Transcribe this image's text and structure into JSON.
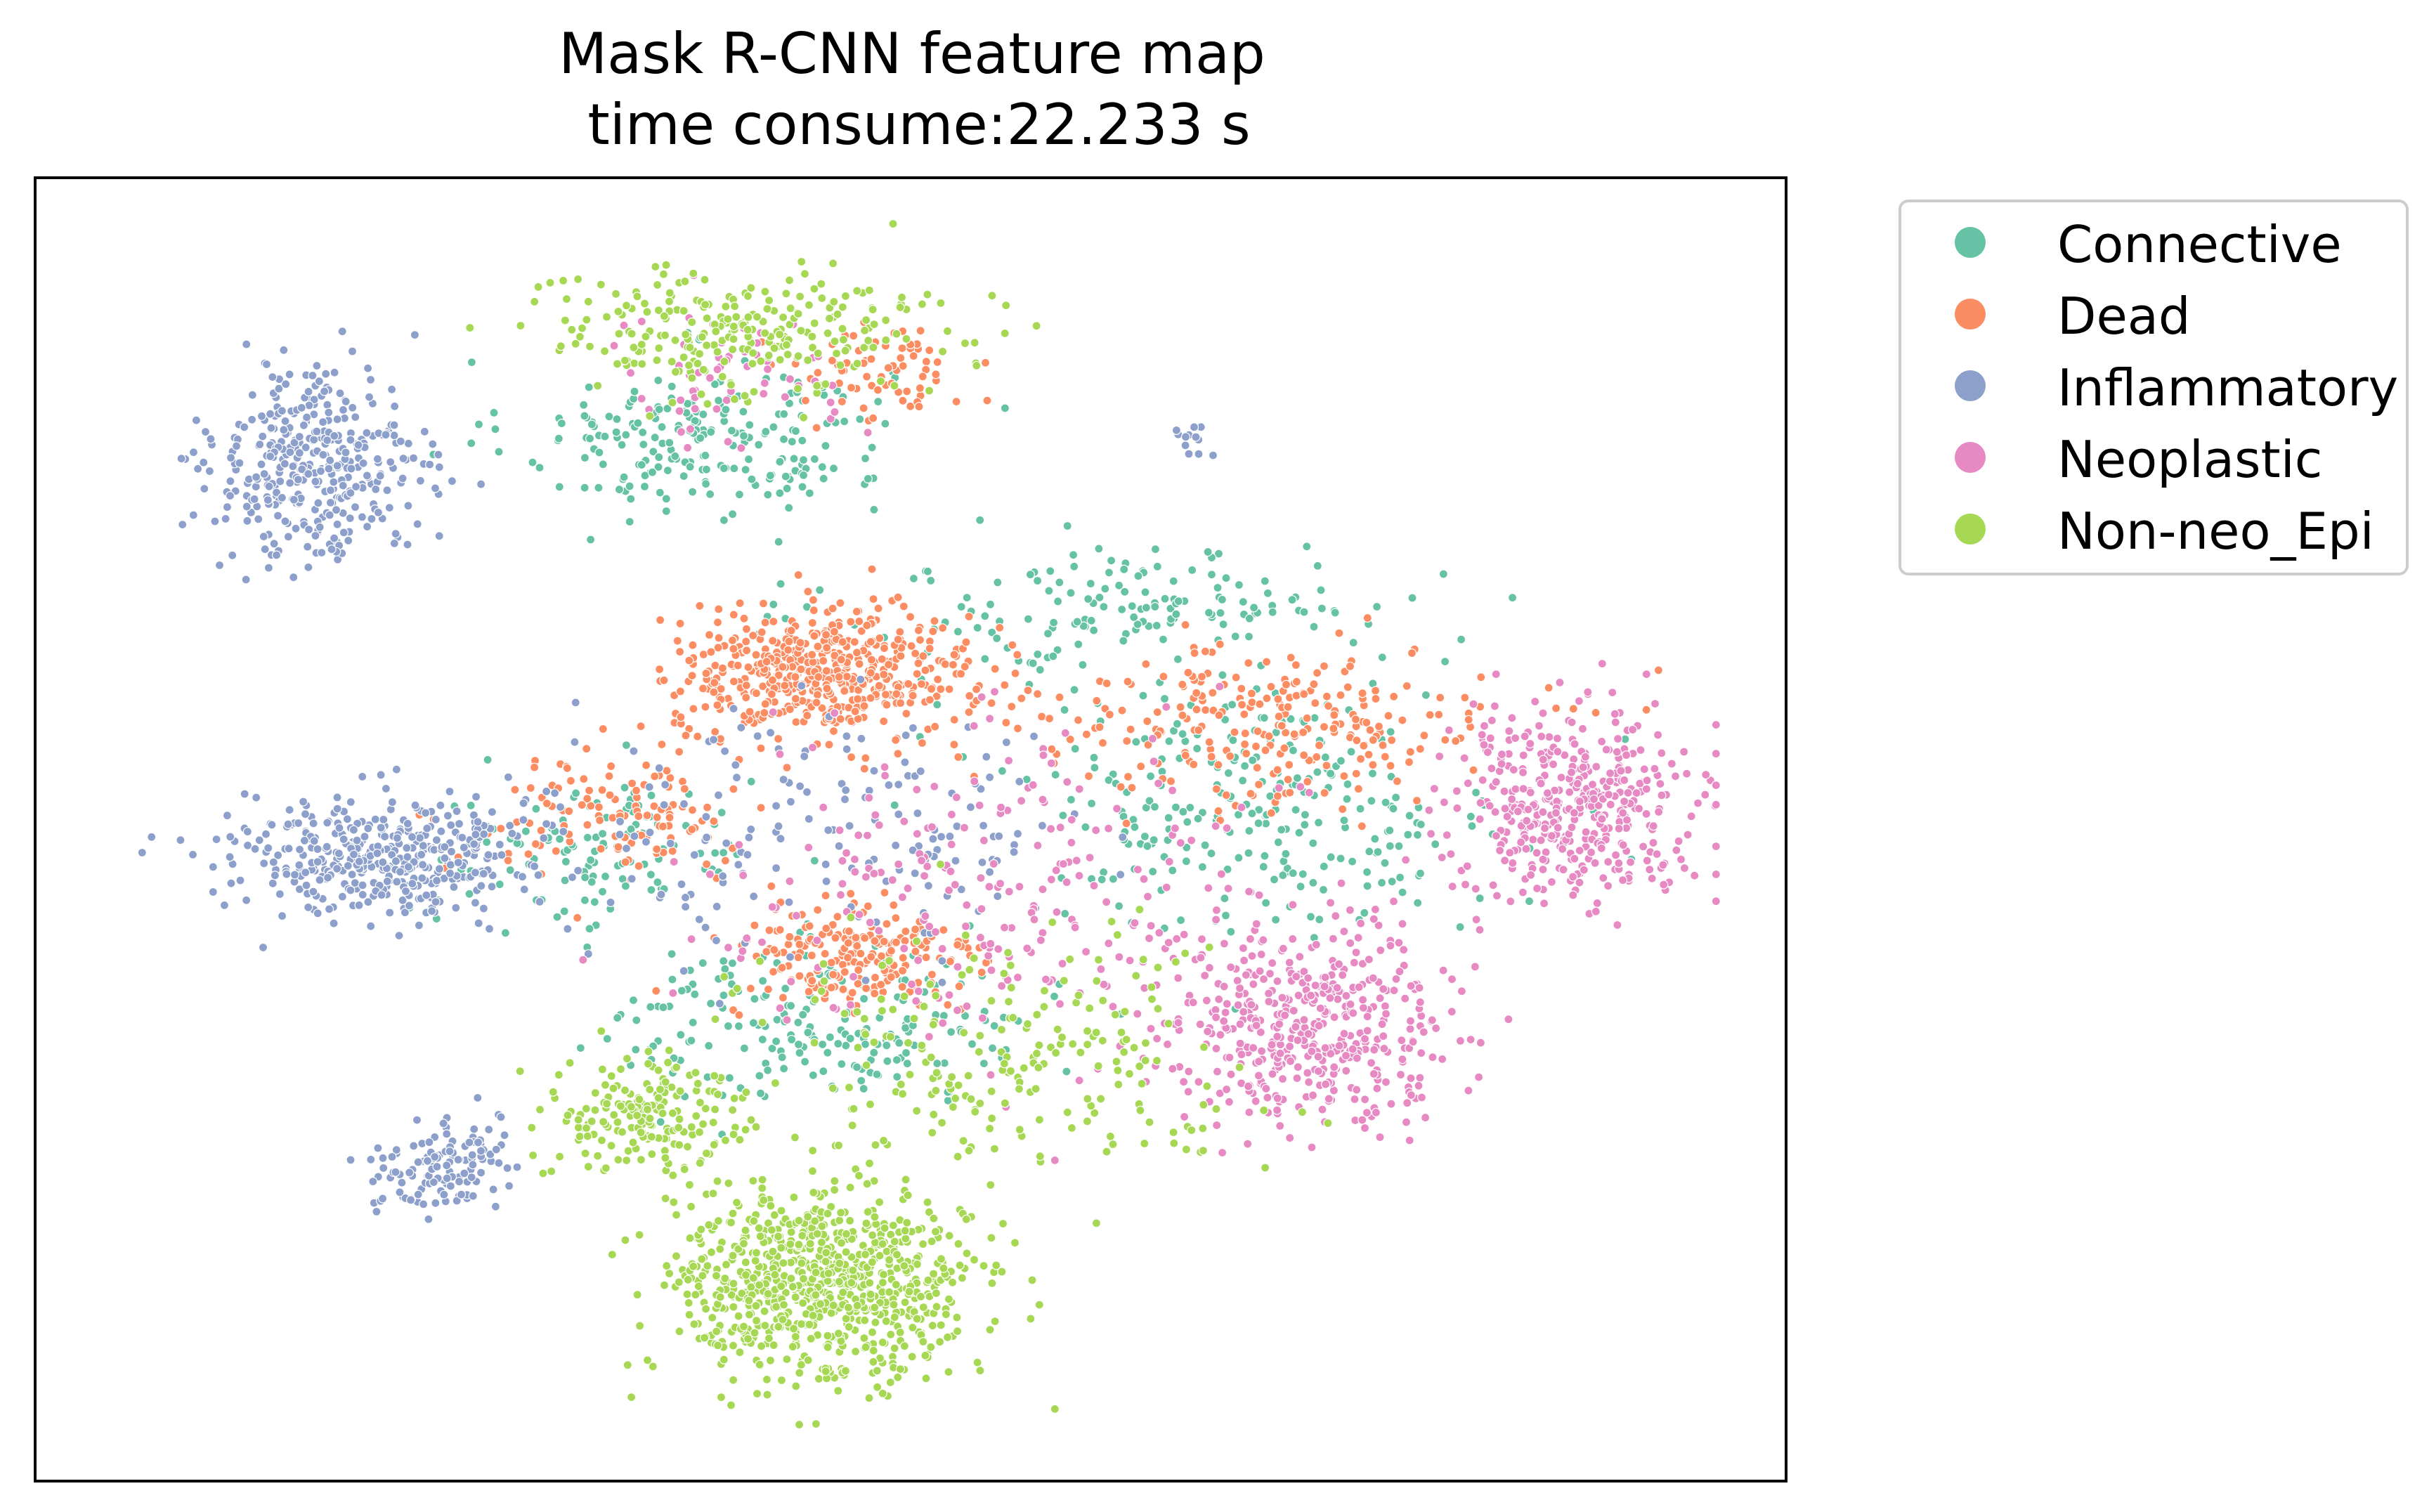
{
  "chart_data": {
    "type": "scatter",
    "title": "Mask R-CNN feature map\n time consume:22.233 s",
    "title_lines": [
      "Mask R-CNN feature map",
      "time consume:22.233 s"
    ],
    "xlabel": "",
    "ylabel": "",
    "xlim": [
      0,
      100
    ],
    "ylim": [
      0,
      100
    ],
    "axes_ticks": "none",
    "grid": false,
    "legend_position": "outside upper-right",
    "marker": "small dots with white edge",
    "series": [
      {
        "name": "Connective",
        "color": "#66c2a5",
        "clusters": [
          {
            "center": [
              38,
              80
            ],
            "spread": [
              9,
              5
            ],
            "n": 220
          },
          {
            "center": [
              63,
              67
            ],
            "spread": [
              14,
              4
            ],
            "n": 160
          },
          {
            "center": [
              70,
              52
            ],
            "spread": [
              12,
              8
            ],
            "n": 260
          },
          {
            "center": [
              45,
              35
            ],
            "spread": [
              10,
              5
            ],
            "n": 200
          },
          {
            "center": [
              32,
              48
            ],
            "spread": [
              8,
              5
            ],
            "n": 120
          }
        ]
      },
      {
        "name": "Dead",
        "color": "#fc8d62",
        "clusters": [
          {
            "center": [
              45,
              62
            ],
            "spread": [
              7,
              4
            ],
            "n": 520
          },
          {
            "center": [
              70,
              58
            ],
            "spread": [
              12,
              5
            ],
            "n": 260
          },
          {
            "center": [
              47,
              40
            ],
            "spread": [
              6,
              4
            ],
            "n": 200
          },
          {
            "center": [
              48,
              85
            ],
            "spread": [
              4,
              3
            ],
            "n": 70
          },
          {
            "center": [
              33,
              51
            ],
            "spread": [
              7,
              4
            ],
            "n": 120
          }
        ]
      },
      {
        "name": "Inflammatory",
        "color": "#8da0cb",
        "clusters": [
          {
            "center": [
              16,
              78
            ],
            "spread": [
              5,
              6
            ],
            "n": 380
          },
          {
            "center": [
              20,
              48
            ],
            "spread": [
              7,
              4
            ],
            "n": 420
          },
          {
            "center": [
              23,
              24
            ],
            "spread": [
              3,
              3
            ],
            "n": 130
          },
          {
            "center": [
              45,
              50
            ],
            "spread": [
              12,
              8
            ],
            "n": 160
          },
          {
            "center": [
              66,
              80
            ],
            "spread": [
              1,
              1
            ],
            "n": 12
          }
        ]
      },
      {
        "name": "Neoplastic",
        "color": "#e78ac3",
        "clusters": [
          {
            "center": [
              73,
              35
            ],
            "spread": [
              7,
              6
            ],
            "n": 460
          },
          {
            "center": [
              88,
              52
            ],
            "spread": [
              6,
              6
            ],
            "n": 420
          },
          {
            "center": [
              55,
              45
            ],
            "spread": [
              14,
              10
            ],
            "n": 240
          },
          {
            "center": [
              40,
              85
            ],
            "spread": [
              6,
              4
            ],
            "n": 60
          }
        ]
      },
      {
        "name": "Non-neo_Epi",
        "color": "#a6d854",
        "clusters": [
          {
            "center": [
              45,
              15
            ],
            "spread": [
              7,
              6
            ],
            "n": 820
          },
          {
            "center": [
              35,
              28
            ],
            "spread": [
              5,
              4
            ],
            "n": 200
          },
          {
            "center": [
              40,
              88
            ],
            "spread": [
              10,
              4
            ],
            "n": 260
          },
          {
            "center": [
              55,
              32
            ],
            "spread": [
              12,
              8
            ],
            "n": 220
          }
        ]
      }
    ]
  }
}
